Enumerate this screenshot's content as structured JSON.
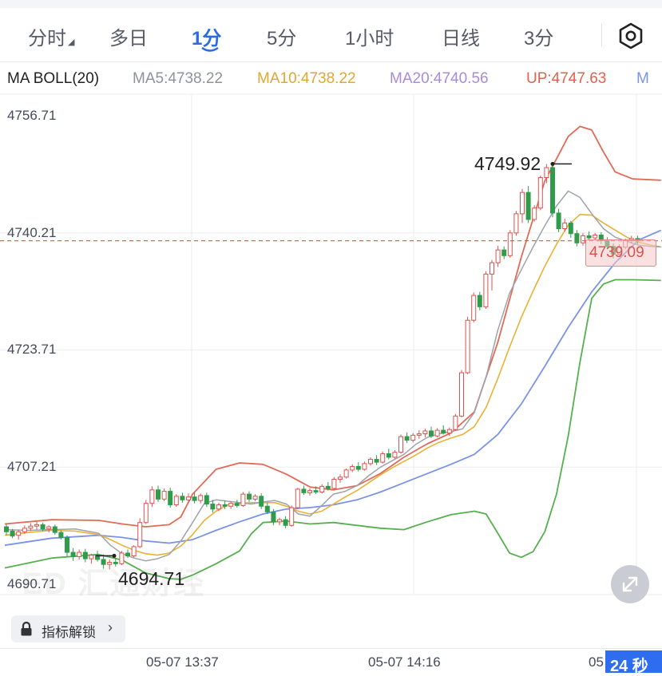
{
  "tabs": [
    {
      "label": "分时",
      "active": false
    },
    {
      "label": "多日",
      "active": false
    },
    {
      "label": "1分",
      "active": true
    },
    {
      "label": "5分",
      "active": false
    },
    {
      "label": "1小时",
      "active": false
    },
    {
      "label": "日线",
      "active": false
    },
    {
      "label": "3分",
      "active": false
    }
  ],
  "settings_icon": "settings-hexagon-icon",
  "indicator_legend": {
    "name": "MA BOLL(20)",
    "ma5": "MA5:4738.22",
    "ma10": "MA10:4738.22",
    "ma20": "MA20:4740.56",
    "up": "UP:4747.63",
    "overflow": "M"
  },
  "colors": {
    "accent": "#2d6be4",
    "up_candle": "#e0514d",
    "down_candle": "#2e9c4b",
    "ma5": "#9ea3ab",
    "ma10": "#e8b236",
    "ma20": "#a98bdc",
    "boll_up": "#e26a56",
    "boll_mid": "#7b93e6",
    "boll_low": "#56b04f"
  },
  "y_axis_labels": [
    "4756.71",
    "4740.21",
    "4723.71",
    "4707.21",
    "4690.71"
  ],
  "x_axis_labels": [
    "05-07 13:37",
    "05-07 14:16",
    "05"
  ],
  "annotations": {
    "high": "4749.92",
    "low": "4694.71",
    "last_price": "4739.09"
  },
  "lock_button": {
    "label": "指标解锁",
    "icon": "lock-icon",
    "chevron": "›"
  },
  "countdown": "24 秒",
  "watermark": "ED 汇通财经",
  "chart_data": {
    "type": "candlestick",
    "ylim": [
      4686.0,
      4759.0
    ],
    "y_ticks": [
      4756.71,
      4740.21,
      4723.71,
      4707.21,
      4690.71
    ],
    "x_labels": [
      "05-07 13:37",
      "05-07 14:16"
    ],
    "series": [
      {
        "name": "MA5",
        "value": 4738.22
      },
      {
        "name": "MA10",
        "value": 4738.22
      },
      {
        "name": "MA20",
        "value": 4740.56
      },
      {
        "name": "UP",
        "value": 4747.63
      }
    ],
    "high": 4749.92,
    "low": 4694.71,
    "last": 4739.09,
    "candles": [
      [
        4698.8,
        4699.2,
        4697.6,
        4698.1
      ],
      [
        4698.2,
        4698.5,
        4697.2,
        4697.5
      ],
      [
        4697.6,
        4698.4,
        4697.0,
        4698.1
      ],
      [
        4698.1,
        4699.0,
        4697.8,
        4698.6
      ],
      [
        4698.6,
        4699.3,
        4698.2,
        4698.9
      ],
      [
        4698.9,
        4699.5,
        4698.4,
        4699.1
      ],
      [
        4699.1,
        4699.4,
        4698.2,
        4698.5
      ],
      [
        4698.5,
        4699.0,
        4698.0,
        4698.8
      ],
      [
        4698.8,
        4699.1,
        4697.7,
        4698.0
      ],
      [
        4698.0,
        4698.3,
        4697.0,
        4697.3
      ],
      [
        4697.3,
        4697.6,
        4694.6,
        4695.2
      ],
      [
        4695.2,
        4695.8,
        4694.0,
        4694.6
      ],
      [
        4694.6,
        4695.6,
        4694.2,
        4695.2
      ],
      [
        4695.2,
        4695.7,
        4693.8,
        4694.3
      ],
      [
        4694.3,
        4695.0,
        4693.6,
        4694.8
      ],
      [
        4694.8,
        4695.4,
        4693.9,
        4694.2
      ],
      [
        4694.2,
        4694.9,
        4692.9,
        4693.5
      ],
      [
        4693.5,
        4694.2,
        4692.8,
        4693.8
      ],
      [
        4693.8,
        4694.4,
        4693.2,
        4693.6
      ],
      [
        4693.6,
        4695.4,
        4693.4,
        4695.1
      ],
      [
        4695.1,
        4695.6,
        4694.4,
        4694.7
      ],
      [
        4694.7,
        4696.2,
        4694.5,
        4696.0
      ],
      [
        4696.0,
        4700.0,
        4695.8,
        4699.4
      ],
      [
        4699.4,
        4702.6,
        4699.2,
        4702.1
      ],
      [
        4702.1,
        4704.5,
        4701.6,
        4704.0
      ],
      [
        4704.0,
        4704.6,
        4702.3,
        4702.7
      ],
      [
        4702.7,
        4704.2,
        4702.4,
        4703.8
      ],
      [
        4703.8,
        4704.3,
        4701.5,
        4701.9
      ],
      [
        4701.9,
        4703.4,
        4701.6,
        4703.1
      ],
      [
        4703.1,
        4703.6,
        4702.2,
        4702.6
      ],
      [
        4702.6,
        4703.5,
        4702.2,
        4703.0
      ],
      [
        4703.0,
        4703.6,
        4702.1,
        4702.5
      ],
      [
        4702.5,
        4703.5,
        4702.1,
        4703.2
      ],
      [
        4703.2,
        4703.6,
        4701.6,
        4702.0
      ],
      [
        4702.0,
        4702.6,
        4700.8,
        4701.3
      ],
      [
        4701.3,
        4702.2,
        4701.0,
        4701.9
      ],
      [
        4701.9,
        4702.5,
        4701.3,
        4701.7
      ],
      [
        4701.7,
        4702.4,
        4701.3,
        4702.1
      ],
      [
        4702.1,
        4702.6,
        4701.5,
        4701.8
      ],
      [
        4701.8,
        4703.7,
        4701.6,
        4703.4
      ],
      [
        4703.4,
        4703.8,
        4702.3,
        4702.7
      ],
      [
        4702.7,
        4703.4,
        4702.4,
        4703.1
      ],
      [
        4703.1,
        4703.5,
        4701.3,
        4701.7
      ],
      [
        4701.7,
        4702.2,
        4700.6,
        4700.9
      ],
      [
        4700.9,
        4701.3,
        4699.0,
        4699.5
      ],
      [
        4699.5,
        4700.1,
        4699.0,
        4699.8
      ],
      [
        4699.8,
        4700.3,
        4698.6,
        4699.0
      ],
      [
        4699.0,
        4701.8,
        4698.8,
        4701.5
      ],
      [
        4701.5,
        4704.3,
        4701.3,
        4704.1
      ],
      [
        4704.1,
        4704.6,
        4703.3,
        4703.6
      ],
      [
        4703.6,
        4704.2,
        4703.2,
        4703.9
      ],
      [
        4703.9,
        4704.5,
        4703.4,
        4703.7
      ],
      [
        4703.7,
        4704.8,
        4703.5,
        4704.5
      ],
      [
        4704.5,
        4705.1,
        4703.9,
        4704.2
      ],
      [
        4704.2,
        4705.8,
        4704.0,
        4705.5
      ],
      [
        4705.5,
        4706.2,
        4705.0,
        4705.8
      ],
      [
        4705.8,
        4707.0,
        4705.6,
        4706.8
      ],
      [
        4706.8,
        4707.6,
        4706.5,
        4707.3
      ],
      [
        4707.3,
        4707.9,
        4706.6,
        4706.9
      ],
      [
        4706.9,
        4708.0,
        4706.7,
        4707.7
      ],
      [
        4707.7,
        4708.6,
        4707.4,
        4708.3
      ],
      [
        4708.3,
        4708.9,
        4707.5,
        4707.9
      ],
      [
        4707.9,
        4709.4,
        4707.7,
        4709.1
      ],
      [
        4709.1,
        4709.8,
        4708.3,
        4708.6
      ],
      [
        4708.6,
        4709.6,
        4708.4,
        4709.3
      ],
      [
        4709.3,
        4711.8,
        4709.1,
        4711.5
      ],
      [
        4711.5,
        4712.1,
        4710.6,
        4711.0
      ],
      [
        4711.0,
        4712.0,
        4710.7,
        4711.7
      ],
      [
        4711.7,
        4712.4,
        4711.2,
        4711.9
      ],
      [
        4711.9,
        4712.6,
        4711.4,
        4712.3
      ],
      [
        4712.3,
        4712.9,
        4711.3,
        4711.6
      ],
      [
        4711.6,
        4712.7,
        4711.4,
        4712.4
      ],
      [
        4712.4,
        4713.1,
        4711.8,
        4712.0
      ],
      [
        4712.0,
        4712.8,
        4711.6,
        4712.5
      ],
      [
        4712.5,
        4714.7,
        4712.3,
        4714.4
      ],
      [
        4714.4,
        4720.9,
        4714.2,
        4720.5
      ],
      [
        4720.5,
        4728.4,
        4720.3,
        4727.9
      ],
      [
        4727.9,
        4731.8,
        4727.6,
        4731.4
      ],
      [
        4731.4,
        4731.9,
        4729.3,
        4729.8
      ],
      [
        4729.8,
        4734.8,
        4729.5,
        4734.4
      ],
      [
        4734.4,
        4736.4,
        4732.1,
        4736.0
      ],
      [
        4736.0,
        4738.4,
        4735.4,
        4737.8
      ],
      [
        4737.8,
        4738.3,
        4736.5,
        4737.0
      ],
      [
        4737.0,
        4740.6,
        4736.7,
        4740.2
      ],
      [
        4740.2,
        4743.3,
        4739.8,
        4742.9
      ],
      [
        4742.9,
        4746.4,
        4741.6,
        4745.9
      ],
      [
        4745.9,
        4746.8,
        4741.6,
        4742.1
      ],
      [
        4742.1,
        4744.1,
        4741.8,
        4743.7
      ],
      [
        4743.7,
        4748.3,
        4743.4,
        4748.0
      ],
      [
        4748.0,
        4749.9,
        4747.2,
        4749.4
      ],
      [
        4749.4,
        4749.8,
        4742.4,
        4743.0
      ],
      [
        4743.0,
        4743.6,
        4740.3,
        4740.8
      ],
      [
        4740.8,
        4742.2,
        4740.4,
        4741.6
      ],
      [
        4741.6,
        4741.9,
        4739.5,
        4740.1
      ],
      [
        4740.1,
        4740.6,
        4738.3,
        4738.8
      ],
      [
        4738.8,
        4740.2,
        4738.4,
        4739.8
      ],
      [
        4739.8,
        4740.4,
        4739.1,
        4739.5
      ],
      [
        4739.5,
        4740.2,
        4739.2,
        4739.9
      ],
      [
        4739.9,
        4740.3,
        4738.6,
        4739.1
      ],
      [
        4739.1,
        4739.6,
        4737.9,
        4738.3
      ],
      [
        4738.3,
        4738.7,
        4736.6,
        4737.2
      ],
      [
        4737.2,
        4738.6,
        4737.0,
        4738.2
      ],
      [
        4738.2,
        4739.4,
        4737.9,
        4739.1
      ],
      [
        4739.1,
        4739.8,
        4738.7,
        4739.4
      ],
      [
        4739.4,
        4739.8,
        4738.6,
        4739.09
      ]
    ],
    "ma5": [
      [
        0,
        4698.4
      ],
      [
        20,
        4698.3
      ],
      [
        40,
        4698.4
      ],
      [
        60,
        4698.5
      ],
      [
        80,
        4697.9
      ],
      [
        90,
        4696.2
      ],
      [
        100,
        4695.0
      ],
      [
        110,
        4694.4
      ],
      [
        120,
        4694.0
      ],
      [
        130,
        4694.3
      ],
      [
        140,
        4694.9
      ],
      [
        150,
        4696.8
      ],
      [
        160,
        4699.4
      ],
      [
        170,
        4702.1
      ],
      [
        180,
        4702.6
      ],
      [
        190,
        4702.4
      ],
      [
        200,
        4702.2
      ],
      [
        210,
        4702.0
      ],
      [
        220,
        4702.3
      ],
      [
        230,
        4702.5
      ],
      [
        240,
        4702.0
      ],
      [
        250,
        4700.6
      ],
      [
        260,
        4700.3
      ],
      [
        270,
        4701.8
      ],
      [
        280,
        4703.4
      ],
      [
        290,
        4703.8
      ],
      [
        300,
        4704.6
      ],
      [
        310,
        4706.0
      ],
      [
        320,
        4707.2
      ],
      [
        330,
        4708.1
      ],
      [
        340,
        4709.0
      ],
      [
        350,
        4710.4
      ],
      [
        360,
        4711.4
      ],
      [
        370,
        4711.9
      ],
      [
        380,
        4712.2
      ],
      [
        390,
        4712.6
      ],
      [
        400,
        4714.9
      ],
      [
        410,
        4719.9
      ],
      [
        420,
        4726.5
      ],
      [
        430,
        4731.7
      ],
      [
        440,
        4735.0
      ],
      [
        450,
        4738.2
      ],
      [
        460,
        4741.2
      ],
      [
        470,
        4744.0
      ],
      [
        480,
        4746.1
      ],
      [
        490,
        4745.2
      ],
      [
        500,
        4742.9
      ],
      [
        510,
        4740.8
      ],
      [
        520,
        4739.6
      ],
      [
        530,
        4739.0
      ],
      [
        540,
        4738.5
      ],
      [
        550,
        4738.3
      ],
      [
        559,
        4738.22
      ]
    ],
    "ma10": [
      [
        0,
        4697.6
      ],
      [
        20,
        4698.0
      ],
      [
        40,
        4698.3
      ],
      [
        60,
        4698.2
      ],
      [
        80,
        4697.7
      ],
      [
        90,
        4697.0
      ],
      [
        100,
        4696.2
      ],
      [
        110,
        4695.5
      ],
      [
        120,
        4695.0
      ],
      [
        130,
        4694.8
      ],
      [
        140,
        4695.1
      ],
      [
        150,
        4696.1
      ],
      [
        160,
        4697.7
      ],
      [
        170,
        4699.7
      ],
      [
        180,
        4701.0
      ],
      [
        190,
        4701.9
      ],
      [
        200,
        4702.1
      ],
      [
        210,
        4702.2
      ],
      [
        220,
        4702.2
      ],
      [
        230,
        4702.2
      ],
      [
        240,
        4701.7
      ],
      [
        250,
        4701.0
      ],
      [
        260,
        4700.6
      ],
      [
        270,
        4701.0
      ],
      [
        280,
        4702.0
      ],
      [
        290,
        4703.0
      ],
      [
        300,
        4703.9
      ],
      [
        310,
        4705.0
      ],
      [
        320,
        4706.1
      ],
      [
        330,
        4707.1
      ],
      [
        340,
        4708.0
      ],
      [
        350,
        4708.9
      ],
      [
        360,
        4709.9
      ],
      [
        370,
        4710.7
      ],
      [
        380,
        4711.3
      ],
      [
        390,
        4711.8
      ],
      [
        400,
        4712.9
      ],
      [
        410,
        4715.6
      ],
      [
        420,
        4719.7
      ],
      [
        430,
        4724.1
      ],
      [
        440,
        4728.3
      ],
      [
        450,
        4732.0
      ],
      [
        460,
        4735.5
      ],
      [
        470,
        4738.6
      ],
      [
        480,
        4741.3
      ],
      [
        490,
        4742.8
      ],
      [
        500,
        4742.7
      ],
      [
        510,
        4741.6
      ],
      [
        520,
        4740.6
      ],
      [
        530,
        4739.6
      ],
      [
        540,
        4738.9
      ],
      [
        550,
        4738.5
      ],
      [
        559,
        4738.22
      ]
    ],
    "ma20": [
      [
        0,
        4696.2
      ],
      [
        40,
        4697.2
      ],
      [
        80,
        4697.6
      ],
      [
        100,
        4697.3
      ],
      [
        120,
        4696.8
      ],
      [
        140,
        4696.5
      ],
      [
        160,
        4697.0
      ],
      [
        180,
        4698.3
      ],
      [
        200,
        4699.5
      ],
      [
        220,
        4700.6
      ],
      [
        240,
        4701.3
      ],
      [
        260,
        4701.5
      ],
      [
        280,
        4701.9
      ],
      [
        300,
        4702.6
      ],
      [
        320,
        4703.7
      ],
      [
        340,
        4705.0
      ],
      [
        360,
        4706.3
      ],
      [
        380,
        4707.6
      ],
      [
        400,
        4709.0
      ],
      [
        420,
        4711.8
      ],
      [
        440,
        4716.1
      ],
      [
        460,
        4721.4
      ],
      [
        480,
        4726.9
      ],
      [
        500,
        4731.9
      ],
      [
        520,
        4736.0
      ],
      [
        540,
        4739.2
      ],
      [
        559,
        4740.56
      ]
    ],
    "boll_up": [
      [
        0,
        4699.2
      ],
      [
        40,
        4699.8
      ],
      [
        80,
        4699.7
      ],
      [
        100,
        4699.2
      ],
      [
        120,
        4698.8
      ],
      [
        140,
        4699.1
      ],
      [
        150,
        4700.2
      ],
      [
        160,
        4703.4
      ],
      [
        180,
        4706.9
      ],
      [
        200,
        4707.8
      ],
      [
        220,
        4707.6
      ],
      [
        240,
        4706.2
      ],
      [
        260,
        4704.4
      ],
      [
        280,
        4704.0
      ],
      [
        300,
        4704.6
      ],
      [
        320,
        4706.3
      ],
      [
        340,
        4708.6
      ],
      [
        360,
        4710.5
      ],
      [
        380,
        4712.0
      ],
      [
        400,
        4715.0
      ],
      [
        420,
        4724.8
      ],
      [
        440,
        4736.8
      ],
      [
        460,
        4747.5
      ],
      [
        480,
        4753.8
      ],
      [
        490,
        4755.2
      ],
      [
        500,
        4754.7
      ],
      [
        510,
        4751.6
      ],
      [
        520,
        4748.8
      ],
      [
        535,
        4747.8
      ],
      [
        559,
        4747.63
      ]
    ],
    "boll_low": [
      [
        0,
        4693.0
      ],
      [
        40,
        4694.4
      ],
      [
        80,
        4694.9
      ],
      [
        100,
        4694.1
      ],
      [
        120,
        4692.3
      ],
      [
        140,
        4691.5
      ],
      [
        150,
        4691.4
      ],
      [
        160,
        4692.0
      ],
      [
        180,
        4693.6
      ],
      [
        200,
        4695.4
      ],
      [
        210,
        4697.8
      ],
      [
        220,
        4699.4
      ],
      [
        240,
        4699.6
      ],
      [
        260,
        4699.2
      ],
      [
        280,
        4699.4
      ],
      [
        300,
        4699.0
      ],
      [
        320,
        4698.6
      ],
      [
        340,
        4698.4
      ],
      [
        360,
        4699.5
      ],
      [
        380,
        4700.5
      ],
      [
        400,
        4701.0
      ],
      [
        410,
        4700.6
      ],
      [
        420,
        4697.9
      ],
      [
        430,
        4695.1
      ],
      [
        440,
        4694.5
      ],
      [
        450,
        4695.3
      ],
      [
        460,
        4698.1
      ],
      [
        470,
        4703.4
      ],
      [
        480,
        4711.6
      ],
      [
        490,
        4722.0
      ],
      [
        500,
        4731.0
      ],
      [
        510,
        4733.0
      ],
      [
        520,
        4733.6
      ],
      [
        535,
        4733.6
      ],
      [
        559,
        4733.5
      ]
    ]
  }
}
